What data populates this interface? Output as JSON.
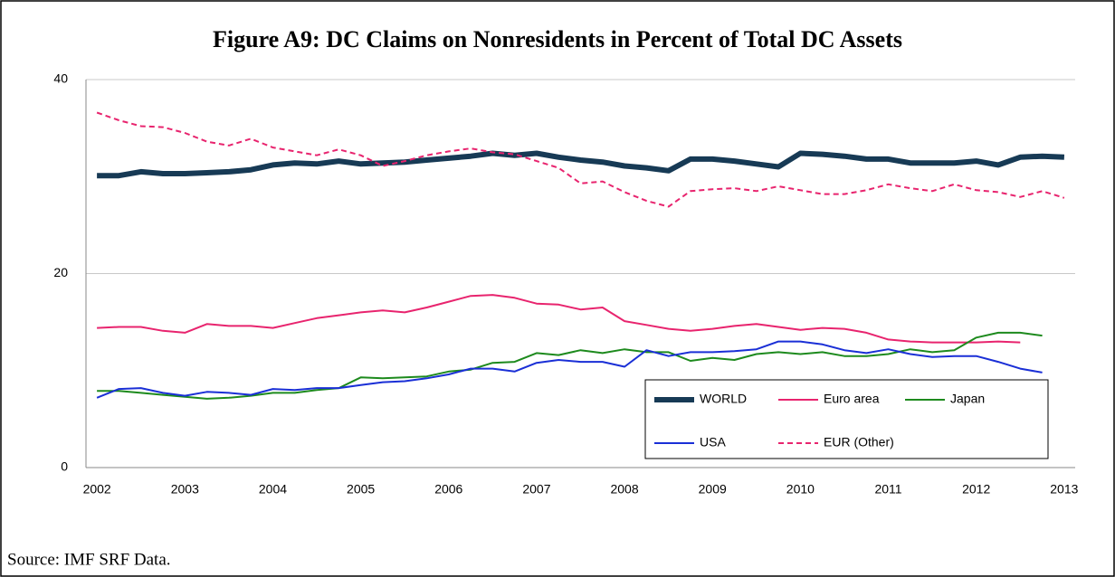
{
  "chart_data": {
    "type": "line",
    "title": "Figure A9: DC Claims on Nonresidents in Percent of Total DC Assets",
    "source": "Source: IMF SRF Data.",
    "categories": [
      "2002",
      null,
      null,
      null,
      "2003",
      null,
      null,
      null,
      "2004",
      null,
      null,
      null,
      "2005",
      null,
      null,
      null,
      "2006",
      null,
      null,
      null,
      "2007",
      null,
      null,
      null,
      "2008",
      null,
      null,
      null,
      "2009",
      null,
      null,
      null,
      "2010",
      null,
      null,
      null,
      "2011",
      null,
      null,
      null,
      "2012",
      null,
      null,
      null,
      "2013"
    ],
    "ylim": [
      0,
      40
    ],
    "yticks": [
      0,
      20,
      40
    ],
    "grid": true,
    "legend": "lower right",
    "series": [
      {
        "name": "WORLD",
        "color": "#173a55",
        "width": 6,
        "dash": false,
        "values": [
          30.1,
          30.1,
          30.5,
          30.3,
          30.3,
          30.4,
          30.5,
          30.7,
          31.2,
          31.4,
          31.3,
          31.6,
          31.3,
          31.4,
          31.5,
          31.7,
          31.9,
          32.1,
          32.4,
          32.2,
          32.4,
          32.0,
          31.7,
          31.5,
          31.1,
          30.9,
          30.6,
          31.8,
          31.8,
          31.6,
          31.3,
          31.0,
          32.4,
          32.3,
          32.1,
          31.8,
          31.8,
          31.4,
          31.4,
          31.4,
          31.6,
          31.2,
          32.0,
          32.1,
          32.0
        ]
      },
      {
        "name": "Euro area",
        "color": "#e8246e",
        "width": 2,
        "dash": false,
        "values": [
          14.4,
          14.5,
          14.5,
          14.1,
          13.9,
          14.8,
          14.6,
          14.6,
          14.4,
          14.9,
          15.4,
          15.7,
          16.0,
          16.2,
          16.0,
          16.5,
          17.1,
          17.7,
          17.8,
          17.5,
          16.9,
          16.8,
          16.3,
          16.5,
          15.1,
          14.7,
          14.3,
          14.1,
          14.3,
          14.6,
          14.8,
          14.5,
          14.2,
          14.4,
          14.3,
          13.9,
          13.2,
          13.0,
          12.9,
          12.9,
          12.9,
          13.0,
          12.9,
          null,
          null
        ]
      },
      {
        "name": "Japan",
        "color": "#1d8a1d",
        "width": 2,
        "dash": false,
        "values": [
          7.9,
          7.9,
          7.7,
          7.5,
          7.3,
          7.1,
          7.2,
          7.4,
          7.7,
          7.7,
          8.0,
          8.2,
          9.3,
          9.2,
          9.3,
          9.4,
          9.9,
          10.1,
          10.8,
          10.9,
          11.8,
          11.6,
          12.1,
          11.8,
          12.2,
          11.9,
          11.9,
          11.0,
          11.3,
          11.1,
          11.7,
          11.9,
          11.7,
          11.9,
          11.5,
          11.5,
          11.7,
          12.2,
          11.9,
          12.1,
          13.4,
          13.9,
          13.9,
          13.6,
          null
        ]
      },
      {
        "name": "USA",
        "color": "#1a2fd6",
        "width": 2,
        "dash": false,
        "values": [
          7.2,
          8.1,
          8.2,
          7.7,
          7.4,
          7.8,
          7.7,
          7.5,
          8.1,
          8.0,
          8.2,
          8.2,
          8.5,
          8.8,
          8.9,
          9.2,
          9.6,
          10.2,
          10.2,
          9.9,
          10.8,
          11.1,
          10.9,
          10.9,
          10.4,
          12.1,
          11.5,
          11.9,
          11.9,
          12.0,
          12.2,
          13.0,
          13.0,
          12.7,
          12.1,
          11.8,
          12.2,
          11.7,
          11.4,
          11.5,
          11.5,
          10.9,
          10.2,
          9.8,
          null
        ]
      },
      {
        "name": "EUR (Other)",
        "color": "#e8246e",
        "width": 2,
        "dash": true,
        "values": [
          36.6,
          35.8,
          35.2,
          35.1,
          34.5,
          33.6,
          33.2,
          33.9,
          33.0,
          32.6,
          32.2,
          32.8,
          32.2,
          31.1,
          31.6,
          32.2,
          32.6,
          32.9,
          32.5,
          32.3,
          31.6,
          30.9,
          29.3,
          29.5,
          28.4,
          27.5,
          26.9,
          28.5,
          28.7,
          28.8,
          28.5,
          29.0,
          28.6,
          28.2,
          28.2,
          28.6,
          29.2,
          28.8,
          28.5,
          29.2,
          28.6,
          28.4,
          27.9,
          28.5,
          27.8
        ]
      }
    ]
  }
}
